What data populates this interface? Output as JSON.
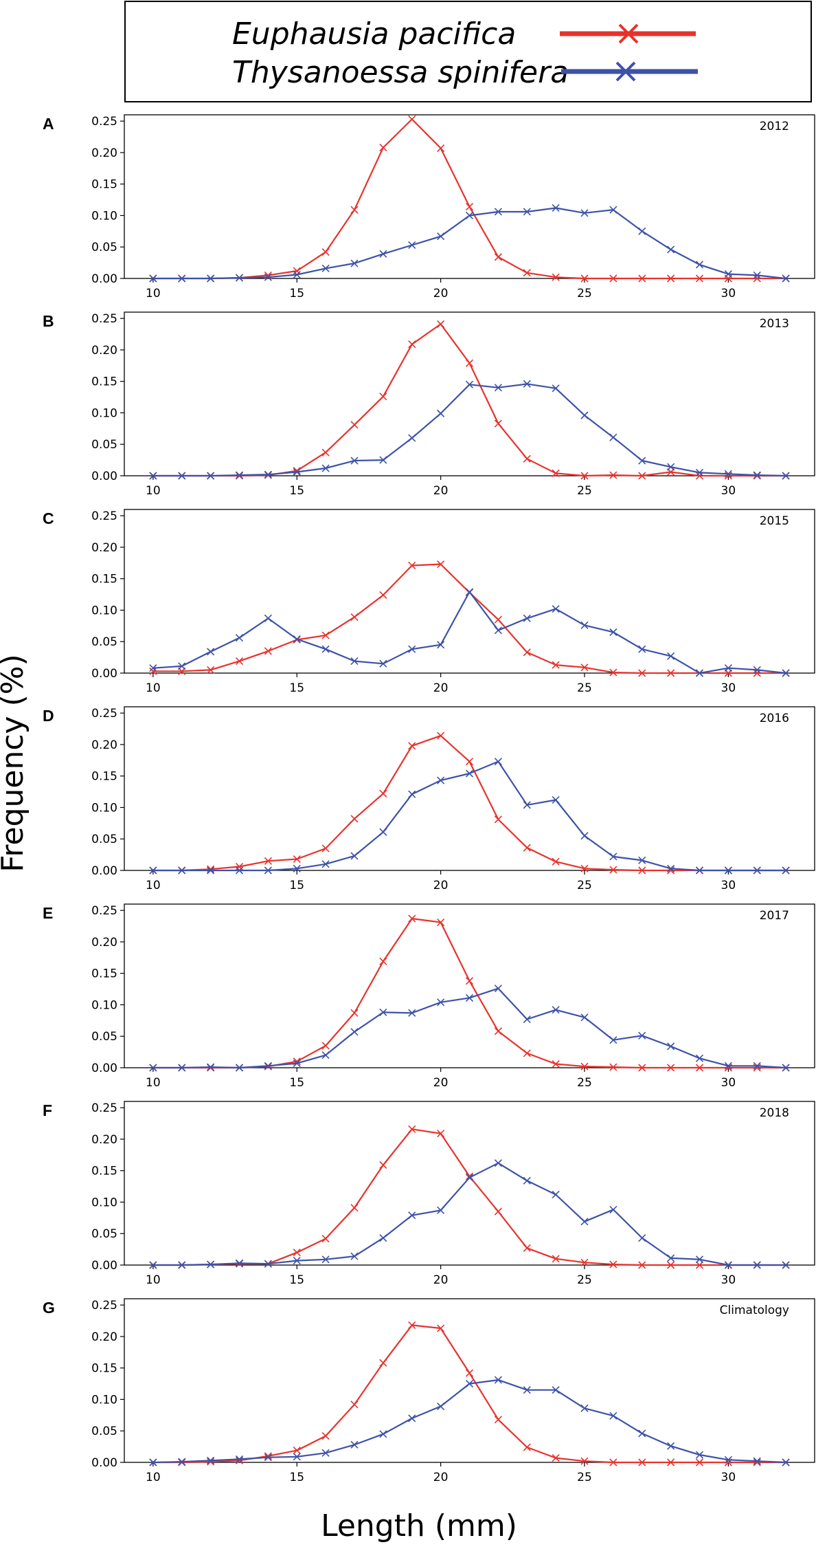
{
  "legend": {
    "series": [
      {
        "name": "Euphausia pacifica",
        "color": "#e8322c"
      },
      {
        "name": "Thysanoessa spinifera",
        "color": "#3d52a8"
      }
    ]
  },
  "axis": {
    "ylabel": "Frequency (%)",
    "xlabel": "Length (mm)",
    "xticks": [
      10,
      15,
      20,
      25,
      30
    ],
    "yticks": [
      0.0,
      0.05,
      0.1,
      0.15,
      0.2,
      0.25
    ]
  },
  "chart_data": [
    {
      "type": "line",
      "panel": "A",
      "title": "2012",
      "x": [
        10,
        11,
        12,
        13,
        14,
        15,
        16,
        17,
        18,
        19,
        20,
        21,
        22,
        23,
        24,
        25,
        26,
        27,
        28,
        29,
        30,
        31,
        32
      ],
      "xlim": [
        9,
        33
      ],
      "ylim": [
        0,
        0.26
      ],
      "series": [
        {
          "name": "Euphausia pacifica",
          "values": [
            0,
            0,
            0,
            0.001,
            0.005,
            0.012,
            0.042,
            0.109,
            0.208,
            0.253,
            0.207,
            0.114,
            0.034,
            0.009,
            0.002,
            0,
            0,
            0,
            0,
            0,
            0,
            0,
            0
          ]
        },
        {
          "name": "Thysanoessa spinifera",
          "values": [
            0,
            0,
            0,
            0.001,
            0.002,
            0.006,
            0.016,
            0.024,
            0.039,
            0.053,
            0.067,
            0.1,
            0.106,
            0.106,
            0.112,
            0.104,
            0.109,
            0.075,
            0.046,
            0.022,
            0.007,
            0.005,
            0
          ]
        }
      ]
    },
    {
      "type": "line",
      "panel": "B",
      "title": "2013",
      "x": [
        10,
        11,
        12,
        13,
        14,
        15,
        16,
        17,
        18,
        19,
        20,
        21,
        22,
        23,
        24,
        25,
        26,
        27,
        28,
        29,
        30,
        31,
        32
      ],
      "xlim": [
        9,
        33
      ],
      "ylim": [
        0,
        0.26
      ],
      "series": [
        {
          "name": "Euphausia pacifica",
          "values": [
            0,
            0,
            0,
            0,
            0.001,
            0.008,
            0.037,
            0.081,
            0.126,
            0.209,
            0.241,
            0.179,
            0.083,
            0.027,
            0.004,
            0,
            0.001,
            0,
            0.006,
            0,
            0,
            0,
            0
          ]
        },
        {
          "name": "Thysanoessa spinifera",
          "values": [
            0,
            0,
            0,
            0.001,
            0.002,
            0.006,
            0.012,
            0.024,
            0.025,
            0.06,
            0.099,
            0.145,
            0.14,
            0.146,
            0.139,
            0.096,
            0.061,
            0.024,
            0.014,
            0.005,
            0.003,
            0.001,
            0
          ]
        }
      ]
    },
    {
      "type": "line",
      "panel": "C",
      "title": "2015",
      "x": [
        10,
        11,
        12,
        13,
        14,
        15,
        16,
        17,
        18,
        19,
        20,
        21,
        22,
        23,
        24,
        25,
        26,
        27,
        28,
        29,
        30,
        31,
        32
      ],
      "xlim": [
        9,
        33
      ],
      "ylim": [
        0,
        0.26
      ],
      "series": [
        {
          "name": "Euphausia pacifica",
          "values": [
            0.003,
            0.003,
            0.005,
            0.019,
            0.035,
            0.053,
            0.06,
            0.089,
            0.124,
            0.171,
            0.173,
            0.128,
            0.085,
            0.033,
            0.013,
            0.009,
            0.001,
            0,
            0,
            0,
            0,
            0,
            0
          ]
        },
        {
          "name": "Thysanoessa spinifera",
          "values": [
            0.008,
            0.011,
            0.034,
            0.056,
            0.087,
            0.054,
            0.038,
            0.019,
            0.015,
            0.038,
            0.045,
            0.129,
            0.068,
            0.087,
            0.102,
            0.076,
            0.065,
            0.038,
            0.027,
            0,
            0.008,
            0.005,
            0
          ]
        }
      ]
    },
    {
      "type": "line",
      "panel": "D",
      "title": "2016",
      "x": [
        10,
        11,
        12,
        13,
        14,
        15,
        16,
        17,
        18,
        19,
        20,
        21,
        22,
        23,
        24,
        25,
        26,
        27,
        28,
        29,
        30,
        31,
        32
      ],
      "xlim": [
        9,
        33
      ],
      "ylim": [
        0,
        0.26
      ],
      "series": [
        {
          "name": "Euphausia pacifica",
          "values": [
            0,
            0,
            0.002,
            0.006,
            0.015,
            0.018,
            0.035,
            0.082,
            0.122,
            0.198,
            0.214,
            0.173,
            0.081,
            0.036,
            0.014,
            0.003,
            0.001,
            0,
            0,
            0,
            0,
            0,
            0
          ]
        },
        {
          "name": "Thysanoessa spinifera",
          "values": [
            0,
            0,
            0,
            0,
            0,
            0.003,
            0.01,
            0.023,
            0.061,
            0.121,
            0.143,
            0.154,
            0.173,
            0.104,
            0.112,
            0.055,
            0.022,
            0.016,
            0.003,
            0,
            0,
            0,
            0
          ]
        }
      ]
    },
    {
      "type": "line",
      "panel": "E",
      "title": "2017",
      "x": [
        10,
        11,
        12,
        13,
        14,
        15,
        16,
        17,
        18,
        19,
        20,
        21,
        22,
        23,
        24,
        25,
        26,
        27,
        28,
        29,
        30,
        31,
        32
      ],
      "xlim": [
        9,
        33
      ],
      "ylim": [
        0,
        0.26
      ],
      "series": [
        {
          "name": "Euphausia pacifica",
          "values": [
            0,
            0,
            0,
            0,
            0.002,
            0.01,
            0.035,
            0.087,
            0.169,
            0.237,
            0.231,
            0.138,
            0.058,
            0.023,
            0.006,
            0.002,
            0.001,
            0,
            0,
            0,
            0,
            0,
            0
          ]
        },
        {
          "name": "Thysanoessa spinifera",
          "values": [
            0,
            0,
            0.001,
            0,
            0.003,
            0.007,
            0.02,
            0.057,
            0.088,
            0.087,
            0.104,
            0.111,
            0.126,
            0.077,
            0.092,
            0.08,
            0.044,
            0.051,
            0.034,
            0.015,
            0.003,
            0.003,
            0
          ]
        }
      ]
    },
    {
      "type": "line",
      "panel": "F",
      "title": "2018",
      "x": [
        10,
        11,
        12,
        13,
        14,
        15,
        16,
        17,
        18,
        19,
        20,
        21,
        22,
        23,
        24,
        25,
        26,
        27,
        28,
        29,
        30,
        31,
        32
      ],
      "xlim": [
        9,
        33
      ],
      "ylim": [
        0,
        0.26
      ],
      "series": [
        {
          "name": "Euphausia pacifica",
          "values": [
            0,
            0,
            0.001,
            0.002,
            0.002,
            0.02,
            0.042,
            0.091,
            0.159,
            0.216,
            0.209,
            0.141,
            0.085,
            0.027,
            0.01,
            0.004,
            0.001,
            0,
            0,
            0,
            0,
            0,
            0
          ]
        },
        {
          "name": "Thysanoessa spinifera",
          "values": [
            0,
            0,
            0.001,
            0.003,
            0.002,
            0.007,
            0.009,
            0.014,
            0.043,
            0.079,
            0.087,
            0.139,
            0.162,
            0.134,
            0.112,
            0.069,
            0.088,
            0.043,
            0.011,
            0.009,
            0,
            0,
            0
          ]
        }
      ]
    },
    {
      "type": "line",
      "panel": "G",
      "title": "Climatology",
      "x": [
        10,
        11,
        12,
        13,
        14,
        15,
        16,
        17,
        18,
        19,
        20,
        21,
        22,
        23,
        24,
        25,
        26,
        27,
        28,
        29,
        30,
        31,
        32
      ],
      "xlim": [
        9,
        33
      ],
      "ylim": [
        0,
        0.26
      ],
      "series": [
        {
          "name": "Euphausia pacifica",
          "values": [
            0,
            0,
            0.001,
            0.003,
            0.01,
            0.019,
            0.042,
            0.092,
            0.158,
            0.218,
            0.213,
            0.142,
            0.068,
            0.024,
            0.007,
            0.002,
            0,
            0,
            0,
            0,
            0,
            0,
            0
          ]
        },
        {
          "name": "Thysanoessa spinifera",
          "values": [
            0,
            0.001,
            0.003,
            0.005,
            0.008,
            0.009,
            0.015,
            0.028,
            0.045,
            0.07,
            0.089,
            0.125,
            0.131,
            0.115,
            0.115,
            0.086,
            0.074,
            0.046,
            0.026,
            0.012,
            0.004,
            0.002,
            0
          ]
        }
      ]
    }
  ]
}
